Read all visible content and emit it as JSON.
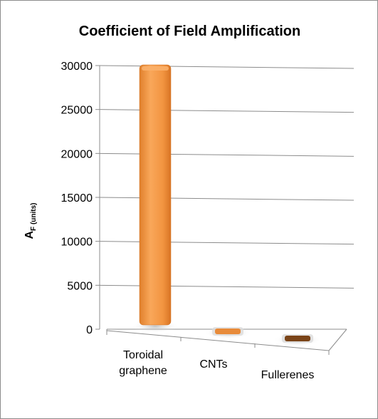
{
  "chart_data": {
    "type": "bar",
    "title": "Coefficient of Field Amplification",
    "ylabel_main": "A",
    "ylabel_sub": "F (units)",
    "xlabel": "",
    "categories": [
      "Toroidal graphene",
      "CNTs",
      "Fullerenes"
    ],
    "category_lines": [
      [
        "Toroidal",
        "graphene"
      ],
      [
        "CNTs"
      ],
      [
        "Fullerenes"
      ]
    ],
    "values": [
      30000,
      0,
      0
    ],
    "ylim": [
      0,
      30000
    ],
    "yticks": [
      0,
      5000,
      10000,
      15000,
      20000,
      25000,
      30000
    ],
    "grid": true,
    "bar_colors": [
      "#f7a04f",
      "#e88b3a",
      "#7a4418"
    ],
    "gridline_color": "#8c8c8c"
  }
}
